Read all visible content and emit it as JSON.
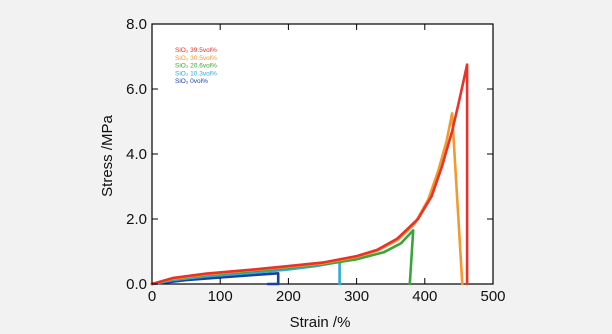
{
  "chart_data": {
    "type": "line",
    "xlabel": "Strain /%",
    "ylabel": "Stress /MPa",
    "xlim": [
      0,
      500
    ],
    "ylim": [
      0,
      8
    ],
    "x_ticks": [
      "0",
      "100",
      "200",
      "300",
      "400",
      "500"
    ],
    "y_ticks": [
      "0.0",
      "2.0",
      "4.0",
      "6.0",
      "8.0"
    ],
    "grid": false,
    "legend_position": "top-left",
    "series": [
      {
        "name": "SiO₂ 39.5vol%",
        "color": "#e8322a",
        "points": [
          [
            0,
            0
          ],
          [
            30,
            0.18
          ],
          [
            80,
            0.32
          ],
          [
            150,
            0.45
          ],
          [
            200,
            0.55
          ],
          [
            250,
            0.66
          ],
          [
            300,
            0.86
          ],
          [
            330,
            1.05
          ],
          [
            360,
            1.4
          ],
          [
            390,
            2.0
          ],
          [
            410,
            2.7
          ],
          [
            425,
            3.6
          ],
          [
            440,
            4.7
          ],
          [
            450,
            5.6
          ],
          [
            462,
            6.75
          ],
          [
            462,
            0
          ]
        ]
      },
      {
        "name": "SiO₂ 30.5vol%",
        "color": "#f29a2e",
        "points": [
          [
            0,
            0
          ],
          [
            30,
            0.16
          ],
          [
            80,
            0.3
          ],
          [
            150,
            0.43
          ],
          [
            200,
            0.53
          ],
          [
            250,
            0.63
          ],
          [
            300,
            0.83
          ],
          [
            330,
            1.02
          ],
          [
            360,
            1.35
          ],
          [
            385,
            1.85
          ],
          [
            405,
            2.6
          ],
          [
            420,
            3.5
          ],
          [
            432,
            4.4
          ],
          [
            440,
            5.25
          ],
          [
            455,
            0
          ]
        ]
      },
      {
        "name": "SiO₂ 20.6vol%",
        "color": "#3aa43b",
        "points": [
          [
            0,
            0
          ],
          [
            30,
            0.15
          ],
          [
            80,
            0.28
          ],
          [
            150,
            0.4
          ],
          [
            200,
            0.5
          ],
          [
            250,
            0.6
          ],
          [
            300,
            0.76
          ],
          [
            340,
            0.98
          ],
          [
            365,
            1.25
          ],
          [
            383,
            1.65
          ],
          [
            378,
            0
          ]
        ]
      },
      {
        "name": "SiO₂ 10.3vol%",
        "color": "#2fa9df",
        "points": [
          [
            0,
            0
          ],
          [
            30,
            0.12
          ],
          [
            80,
            0.24
          ],
          [
            150,
            0.35
          ],
          [
            200,
            0.45
          ],
          [
            240,
            0.55
          ],
          [
            275,
            0.68
          ],
          [
            275,
            0
          ]
        ]
      },
      {
        "name": "SiO₂ 0vol%",
        "color": "#1c3f9e",
        "points": [
          [
            0,
            0
          ],
          [
            50,
            0.12
          ],
          [
            100,
            0.2
          ],
          [
            150,
            0.28
          ],
          [
            185,
            0.33
          ],
          [
            185,
            0
          ],
          [
            170,
            0
          ]
        ]
      }
    ]
  }
}
